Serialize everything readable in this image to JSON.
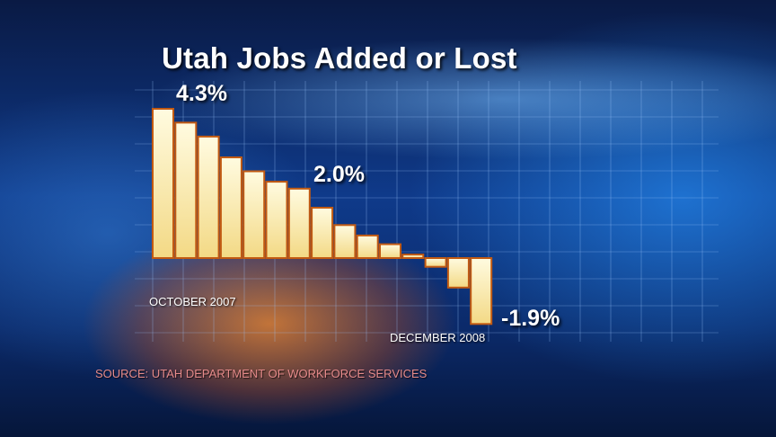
{
  "title": "Utah Jobs Added or Lost",
  "source": "SOURCE: UTAH DEPARTMENT OF WORKFORCE SERVICES",
  "colors": {
    "bar_fill_top": "#fffbe0",
    "bar_fill_bottom": "#f3d985",
    "bar_stroke": "#c25a12",
    "text": "#ffffff",
    "source_text": "#e58a8a"
  },
  "chart_data": {
    "type": "bar",
    "title": "Utah Jobs Added or Lost",
    "ylabel": "",
    "xlabel": "",
    "grid": true,
    "ylim": [
      -2,
      4.5
    ],
    "categories": [
      "October 2007",
      "",
      "",
      "",
      "",
      "",
      "",
      "",
      "",
      "",
      "",
      "",
      "",
      "",
      "December 2008"
    ],
    "values": [
      4.3,
      3.9,
      3.5,
      2.9,
      2.5,
      2.2,
      2.0,
      1.45,
      0.95,
      0.65,
      0.4,
      0.1,
      -0.25,
      -0.85,
      -1.9
    ],
    "data_labels": [
      {
        "index": 0,
        "text": "4.3%"
      },
      {
        "index": 6,
        "text": "2.0%"
      },
      {
        "index": 14,
        "text": "-1.9%"
      }
    ],
    "date_labels": {
      "first": "OCTOBER 2007",
      "last": "DECEMBER 2008"
    }
  }
}
